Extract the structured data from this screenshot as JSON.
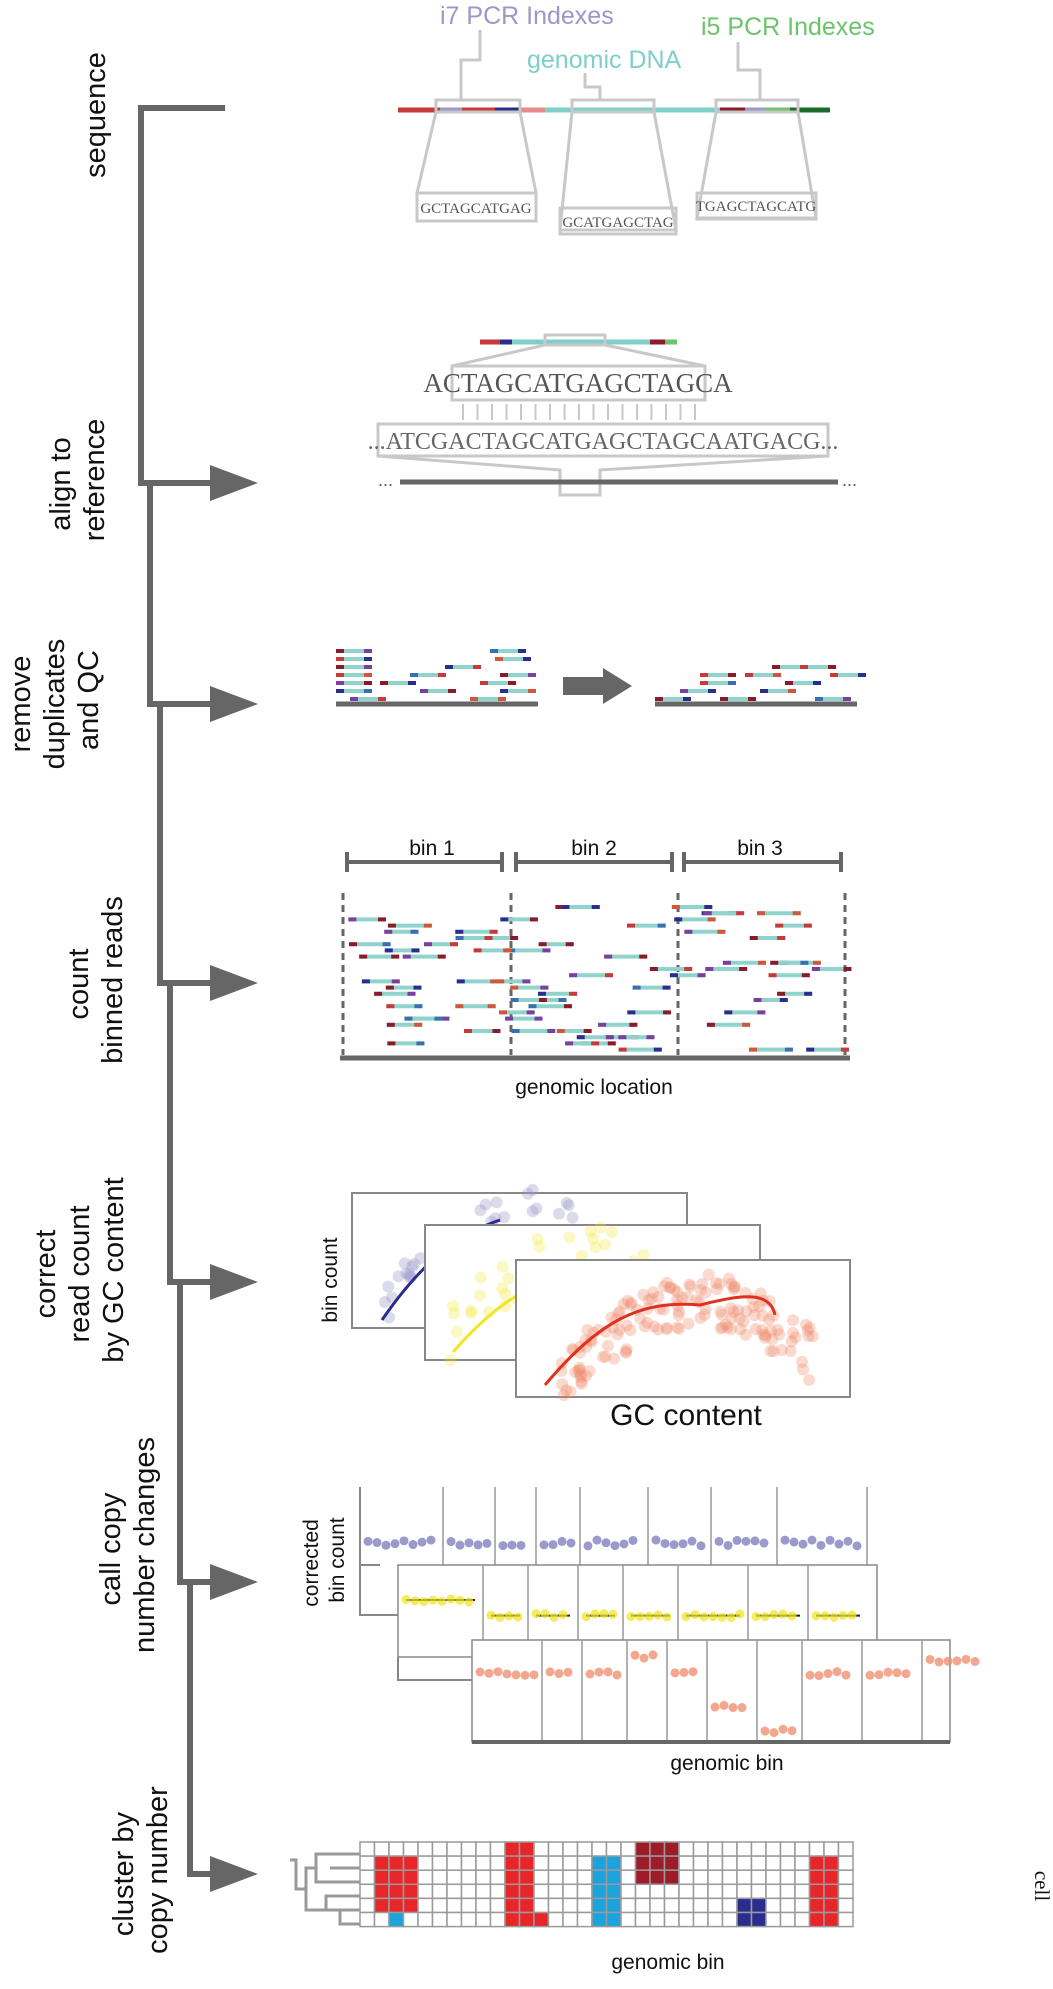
{
  "steps": [
    {
      "line1": "sequence",
      "line2": "",
      "line3": ""
    },
    {
      "line1": "align to",
      "line2": "reference",
      "line3": ""
    },
    {
      "line1": "remove",
      "line2": "duplicates",
      "line3": "and QC"
    },
    {
      "line1": "count",
      "line2": "binned reads",
      "line3": ""
    },
    {
      "line1": "correct",
      "line2": "read count",
      "line3": "by GC content"
    },
    {
      "line1": "call copy",
      "line2": "number changes",
      "line3": ""
    },
    {
      "line1": "cluster by",
      "line2": "copy number",
      "line3": ""
    }
  ],
  "sequence_panel": {
    "i7_label": "i7 PCR Indexes",
    "genomic_label": "genomic DNA",
    "i5_label": "i5 PCR Indexes",
    "zoom_1": "GCTAGCATGAG",
    "zoom_2": "GCATGAGCTAG",
    "zoom_3": "TGAGCTAGCATG",
    "colors": {
      "i7": "#9a98c8",
      "genomic": "#7fcfc8",
      "i5": "#6cc36a"
    }
  },
  "align_panel": {
    "read_seq": "ACTAGCATGAGCTAGCA",
    "ref_seq": "...ATCGACTAGCATGAGCTAGCAATGACG...",
    "left_dots": "...",
    "right_dots": "..."
  },
  "bins_panel": {
    "bins": [
      "bin 1",
      "bin 2",
      "bin 3"
    ],
    "xlabel": "genomic location"
  },
  "gc_panel": {
    "ylabel": "bin count",
    "xlabel": "GC content",
    "colors": [
      "#2b2d8e",
      "#f0e626",
      "#e0301e"
    ]
  },
  "cnv_panel": {
    "ylabel_1": "corrected",
    "ylabel_2": "bin count",
    "xlabel": "genomic bin"
  },
  "cluster_panel": {
    "xlabel": "genomic bin",
    "ylabel": "cell",
    "colors": {
      "gain": "#e8262a",
      "high_gain": "#9e1b2a",
      "loss": "#1aa3dd",
      "deep_loss": "#2b2d8e"
    }
  }
}
